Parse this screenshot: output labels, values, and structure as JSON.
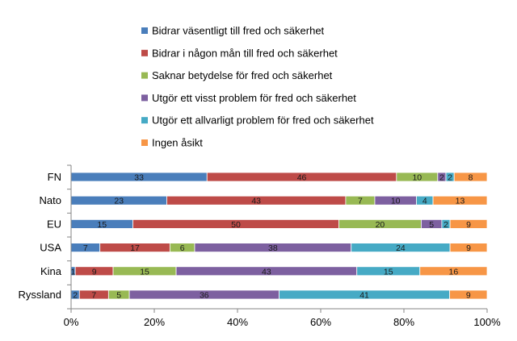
{
  "chart_data": {
    "type": "bar",
    "orientation": "horizontal",
    "stacked": "percent",
    "categories": [
      "FN",
      "Nato",
      "EU",
      "USA",
      "Kina",
      "Ryssland"
    ],
    "series": [
      {
        "name": "Bidrar väsentligt till fred och säkerhet",
        "color": "#4a7ebb",
        "values": [
          33,
          23,
          15,
          7,
          1,
          2
        ]
      },
      {
        "name": "Bidrar i någon mån till fred och säkerhet",
        "color": "#be4b48",
        "values": [
          46,
          43,
          50,
          17,
          9,
          7
        ]
      },
      {
        "name": "Saknar betydelse för fred och säkerhet",
        "color": "#98b954",
        "values": [
          10,
          7,
          20,
          6,
          15,
          5
        ]
      },
      {
        "name": "Utgör ett visst problem för fred och säkerhet",
        "color": "#7d60a0",
        "values": [
          2,
          10,
          5,
          38,
          43,
          36
        ]
      },
      {
        "name": "Utgör ett allvarligt problem för fred och säkerhet",
        "color": "#46aac5",
        "values": [
          2,
          4,
          2,
          24,
          15,
          41
        ]
      },
      {
        "name": "Ingen åsikt",
        "color": "#f79646",
        "values": [
          8,
          13,
          9,
          9,
          16,
          9
        ]
      }
    ],
    "xticks": [
      "0%",
      "20%",
      "40%",
      "60%",
      "80%",
      "100%"
    ],
    "xlim": [
      0,
      100
    ],
    "legend": "top",
    "grid": false
  }
}
